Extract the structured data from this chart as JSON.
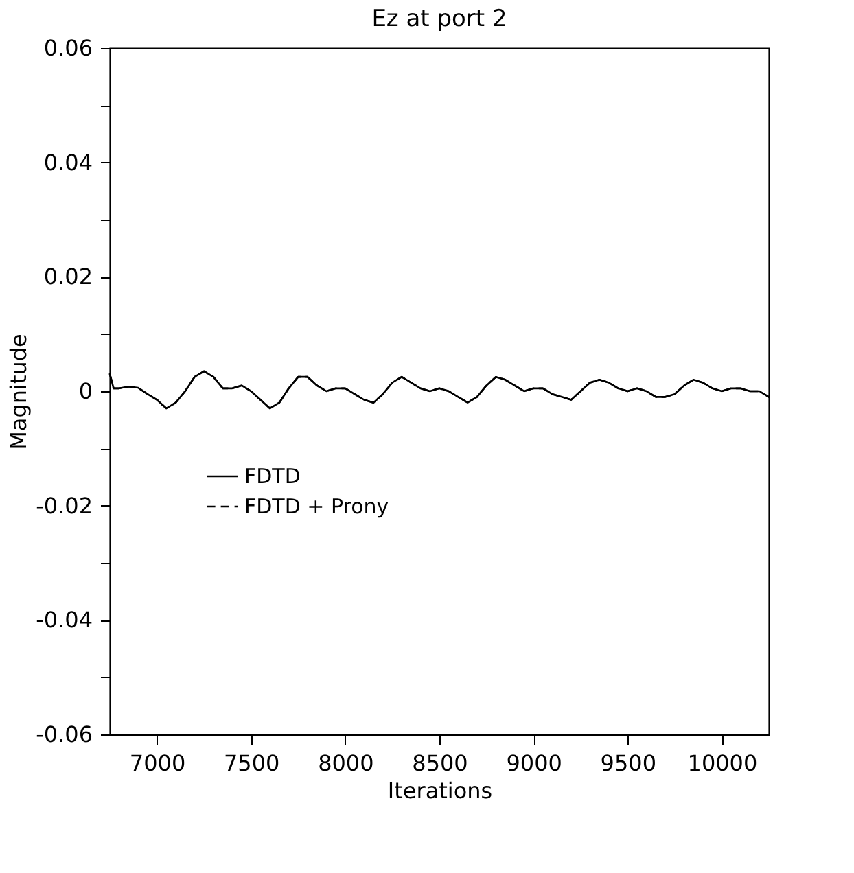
{
  "chart_data": {
    "type": "line",
    "title": "Ez at port 2",
    "xlabel": "Iterations",
    "ylabel": "Magnitude",
    "x": [
      6750,
      6770,
      6800,
      6850,
      6900,
      6950,
      7000,
      7050,
      7100,
      7150,
      7200,
      7250,
      7300,
      7350,
      7400,
      7450,
      7500,
      7550,
      7600,
      7650,
      7700,
      7750,
      7800,
      7850,
      7900,
      7950,
      8000,
      8050,
      8100,
      8150,
      8200,
      8250,
      8300,
      8350,
      8400,
      8450,
      8500,
      8550,
      8600,
      8650,
      8700,
      8750,
      8800,
      8850,
      8900,
      8950,
      9000,
      9050,
      9100,
      9150,
      9200,
      9250,
      9300,
      9350,
      9400,
      9450,
      9500,
      9550,
      9600,
      9650,
      9700,
      9750,
      9800,
      9850,
      9900,
      9950,
      10000,
      10050,
      10100,
      10150,
      10200,
      10250
    ],
    "series": [
      {
        "name": "FDTD",
        "color": "#000000",
        "line_style": "solid",
        "values": [
          0.003,
          0.0005,
          0.0005,
          0.0008,
          0.0006,
          -0.0005,
          -0.0015,
          -0.003,
          -0.002,
          0,
          0.0025,
          0.0035,
          0.0025,
          0.0005,
          0.0005,
          0.001,
          0,
          -0.0015,
          -0.003,
          -0.002,
          0.0005,
          0.0025,
          0.0025,
          0.001,
          0,
          0.0005,
          0.0005,
          -0.0005,
          -0.0015,
          -0.002,
          -0.0005,
          0.0015,
          0.0025,
          0.0015,
          0.0005,
          0,
          0.0005,
          0,
          -0.001,
          -0.002,
          -0.001,
          0.001,
          0.0025,
          0.002,
          0.001,
          0,
          0.0005,
          0.0005,
          -0.0005,
          -0.001,
          -0.0015,
          0,
          0.0015,
          0.002,
          0.0015,
          0.0005,
          0,
          0.0005,
          0,
          -0.001,
          -0.001,
          -0.0005,
          0.001,
          0.002,
          0.0015,
          0.0005,
          0,
          0.0005,
          0.0005,
          0,
          0,
          -0.001
        ]
      },
      {
        "name": "FDTD + Prony",
        "color": "#000000",
        "line_style": "dashed",
        "values": [
          0.003,
          0.0005,
          0.0005,
          0.0008,
          0.0006,
          -0.0005,
          -0.0015,
          -0.003,
          -0.002,
          0,
          0.0025,
          0.0035,
          0.0025,
          0.0005,
          0.0005,
          0.001,
          0,
          -0.0015,
          -0.003,
          -0.002,
          0.0005,
          0.0025,
          0.0025,
          0.001,
          0,
          0.0005,
          0.0005,
          -0.0005,
          -0.0015,
          -0.002,
          -0.0005,
          0.0015,
          0.0025,
          0.0015,
          0.0005,
          0,
          0.0005,
          0,
          -0.001,
          -0.002,
          -0.001,
          0.001,
          0.0025,
          0.002,
          0.001,
          0,
          0.0005,
          0.0005,
          -0.0005,
          -0.001,
          -0.0015,
          0,
          0.0015,
          0.002,
          0.0015,
          0.0005,
          0,
          0.0005,
          0,
          -0.001,
          -0.001,
          -0.0005,
          0.001,
          0.002,
          0.0015,
          0.0005,
          0,
          0.0005,
          0.0005,
          0,
          0,
          -0.001
        ]
      }
    ],
    "xlim": [
      6750,
      10250
    ],
    "xticks": [
      7000,
      7500,
      8000,
      8500,
      9000,
      9500,
      10000
    ],
    "ylim": [
      -0.06,
      0.06
    ],
    "yticks": [
      -0.06,
      {
        "value": -0.05,
        "label": null
      },
      -0.04,
      {
        "value": -0.03,
        "label": null
      },
      -0.02,
      {
        "value": -0.01,
        "label": null
      },
      0,
      {
        "value": 0.01,
        "label": null
      },
      0.02,
      {
        "value": 0.03,
        "label": null
      },
      0.04,
      {
        "value": 0.05,
        "label": null
      },
      0.06
    ],
    "grid": false,
    "legend": "bottom left",
    "marker": "none"
  }
}
